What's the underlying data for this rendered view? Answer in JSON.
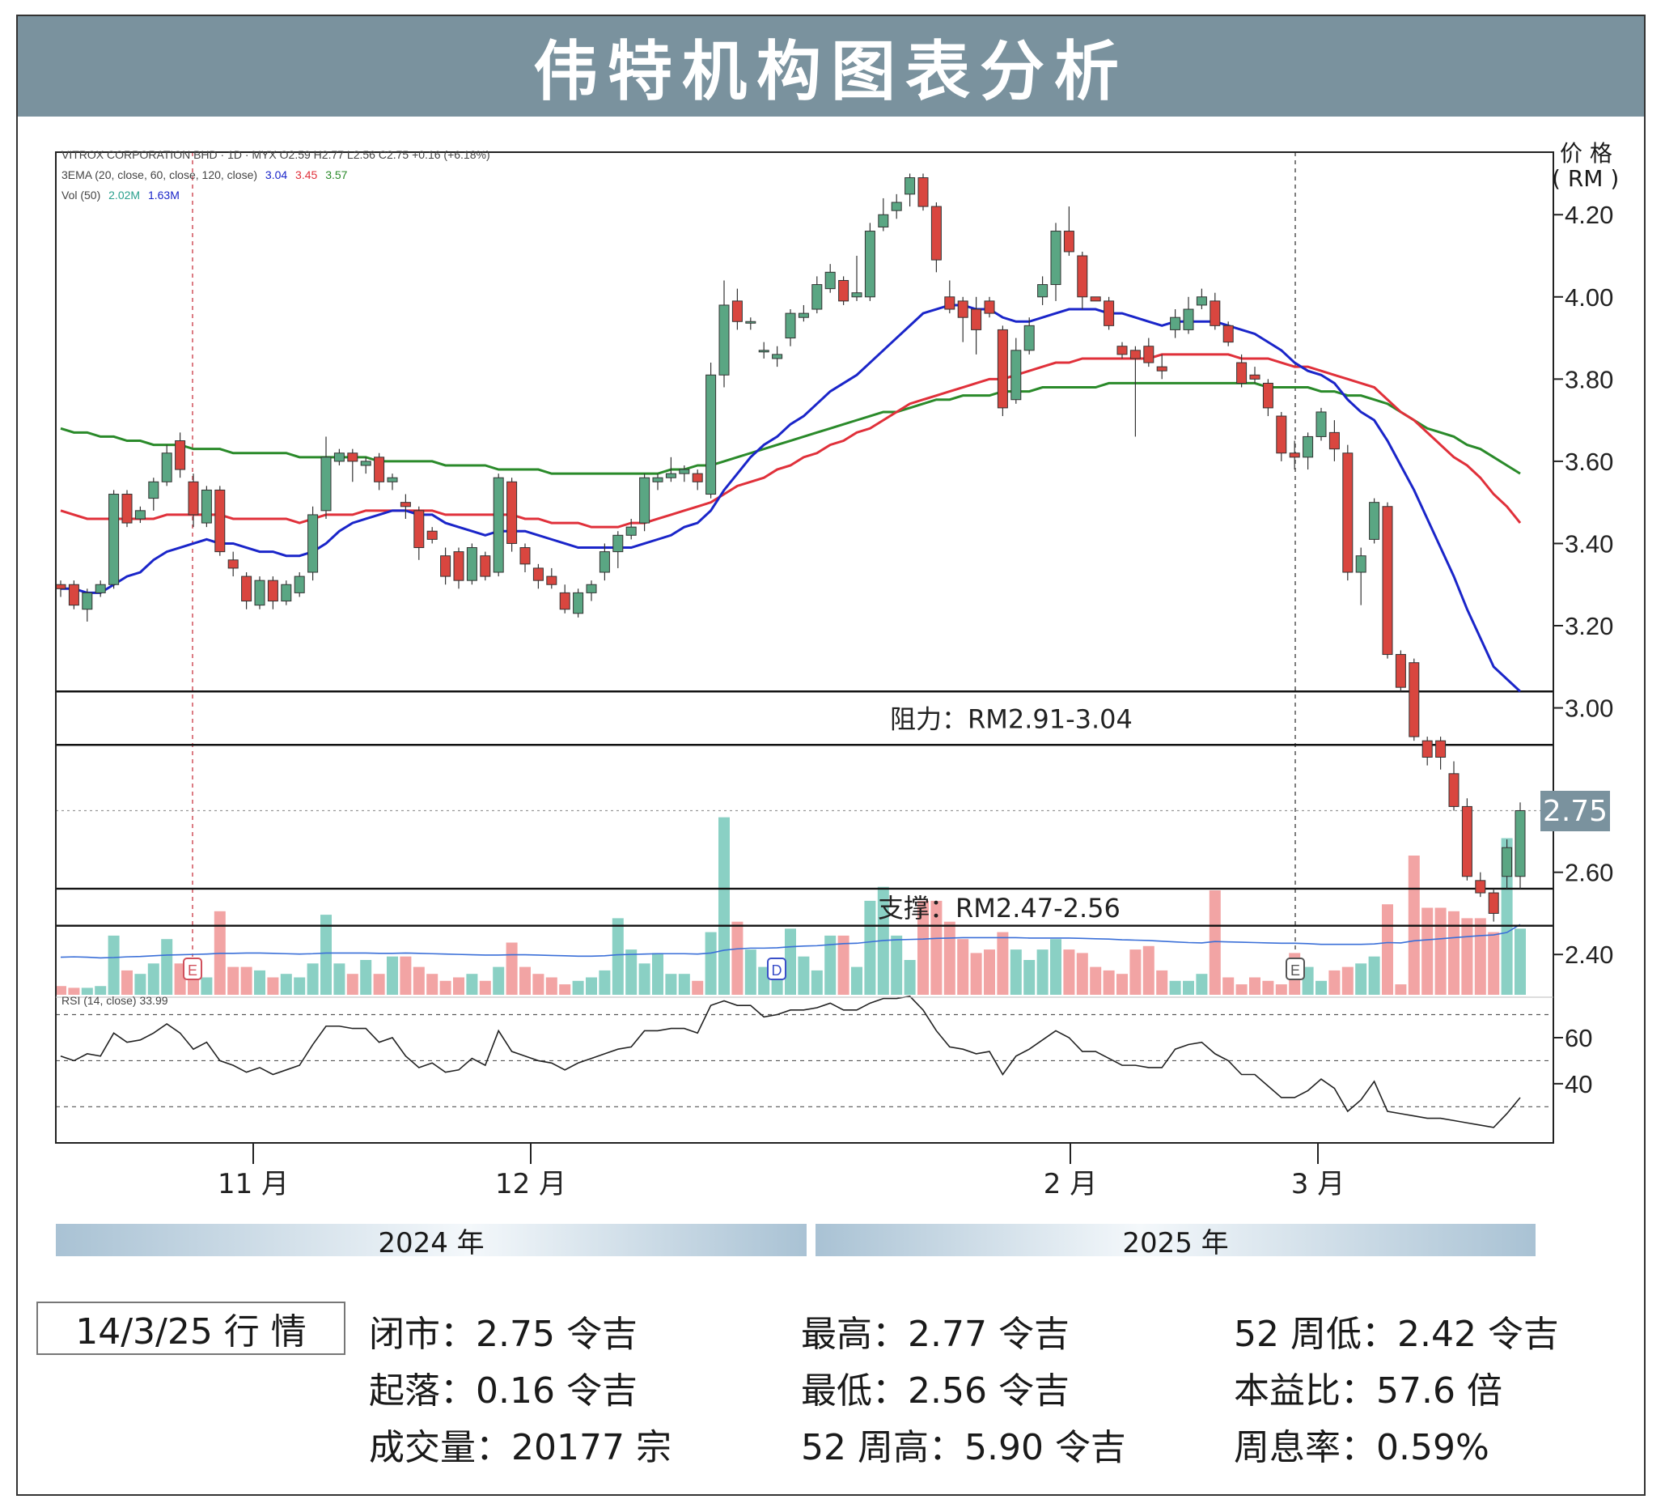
{
  "title": "伟特机构图表分析",
  "chart_header": {
    "line1": "VITROX CORPORATION BHD · 1D · MYX  O2.59  H2.77  L2.56  C2.75  +0.16 (+6.18%)",
    "line2_label": "3EMA (20, close, 60, close, 120, close)",
    "ema20": "3.04",
    "ema60": "3.45",
    "ema120": "3.57",
    "vol_label": "Vol (50)",
    "vol1": "2.02M",
    "vol2": "1.63M",
    "rsi_label": "RSI (14, close)  33.99"
  },
  "axis": {
    "price_unit_line1": "价 格",
    "price_unit_line2": "( RM )",
    "price_ticks": [
      "4.20",
      "4.00",
      "3.80",
      "3.60",
      "3.40",
      "3.20",
      "3.00",
      "2.60",
      "2.40"
    ],
    "rsi_ticks": [
      "60",
      "40"
    ],
    "month_ticks": [
      "11 月",
      "12 月",
      "2 月",
      "3 月"
    ],
    "years": [
      "2024 年",
      "2025 年"
    ],
    "last_price": "2.75"
  },
  "annotations": {
    "resistance": "阻力：RM2.91-3.04",
    "support": "支撑：RM2.47-2.56",
    "event_markers": [
      "E",
      "D",
      "E"
    ]
  },
  "colors": {
    "up": "#5aa683",
    "down": "#d9463f",
    "vol_up": "#8ad0c4",
    "vol_down": "#f2a4a4",
    "ema20": "#1a25c9",
    "ema60": "#e0303a",
    "ema120": "#2a8a2a",
    "banner": "#7a929e"
  },
  "chart_data": {
    "type": "candlestick",
    "price_range": [
      2.3,
      4.36
    ],
    "rsi_range": [
      15,
      73
    ],
    "rsi_levels": [
      70,
      50,
      30
    ],
    "resistance_zone": [
      2.91,
      3.04
    ],
    "support_zone": [
      2.47,
      2.56
    ],
    "candles": [
      [
        3.3,
        3.29,
        3.31,
        3.27
      ],
      [
        3.3,
        3.25,
        3.31,
        3.24
      ],
      [
        3.24,
        3.28,
        3.29,
        3.21
      ],
      [
        3.28,
        3.3,
        3.31,
        3.27
      ],
      [
        3.3,
        3.52,
        3.53,
        3.29
      ],
      [
        3.52,
        3.45,
        3.53,
        3.44
      ],
      [
        3.46,
        3.48,
        3.49,
        3.45
      ],
      [
        3.51,
        3.55,
        3.56,
        3.48
      ],
      [
        3.55,
        3.62,
        3.64,
        3.54
      ],
      [
        3.65,
        3.58,
        3.67,
        3.56
      ],
      [
        3.55,
        3.47,
        3.57,
        3.44
      ],
      [
        3.45,
        3.53,
        3.54,
        3.44
      ],
      [
        3.53,
        3.38,
        3.54,
        3.37
      ],
      [
        3.36,
        3.34,
        3.38,
        3.32
      ],
      [
        3.32,
        3.26,
        3.33,
        3.24
      ],
      [
        3.25,
        3.31,
        3.32,
        3.24
      ],
      [
        3.31,
        3.26,
        3.32,
        3.24
      ],
      [
        3.26,
        3.3,
        3.31,
        3.25
      ],
      [
        3.28,
        3.32,
        3.33,
        3.27
      ],
      [
        3.33,
        3.47,
        3.49,
        3.31
      ],
      [
        3.48,
        3.61,
        3.66,
        3.46
      ],
      [
        3.6,
        3.62,
        3.63,
        3.59
      ],
      [
        3.62,
        3.6,
        3.63,
        3.55
      ],
      [
        3.59,
        3.6,
        3.61,
        3.57
      ],
      [
        3.61,
        3.55,
        3.62,
        3.53
      ],
      [
        3.55,
        3.56,
        3.57,
        3.53
      ],
      [
        3.5,
        3.49,
        3.52,
        3.46
      ],
      [
        3.48,
        3.39,
        3.49,
        3.36
      ],
      [
        3.43,
        3.41,
        3.44,
        3.4
      ],
      [
        3.37,
        3.32,
        3.39,
        3.3
      ],
      [
        3.38,
        3.31,
        3.39,
        3.29
      ],
      [
        3.31,
        3.39,
        3.4,
        3.3
      ],
      [
        3.37,
        3.32,
        3.38,
        3.31
      ],
      [
        3.33,
        3.56,
        3.57,
        3.32
      ],
      [
        3.55,
        3.4,
        3.56,
        3.38
      ],
      [
        3.39,
        3.35,
        3.4,
        3.33
      ],
      [
        3.34,
        3.31,
        3.35,
        3.29
      ],
      [
        3.32,
        3.3,
        3.34,
        3.29
      ],
      [
        3.28,
        3.24,
        3.3,
        3.23
      ],
      [
        3.23,
        3.28,
        3.29,
        3.22
      ],
      [
        3.28,
        3.3,
        3.31,
        3.26
      ],
      [
        3.33,
        3.38,
        3.4,
        3.31
      ],
      [
        3.38,
        3.42,
        3.43,
        3.34
      ],
      [
        3.42,
        3.44,
        3.46,
        3.41
      ],
      [
        3.45,
        3.56,
        3.57,
        3.43
      ],
      [
        3.55,
        3.56,
        3.57,
        3.53
      ],
      [
        3.56,
        3.57,
        3.61,
        3.55
      ],
      [
        3.57,
        3.58,
        3.59,
        3.55
      ],
      [
        3.57,
        3.55,
        3.58,
        3.53
      ],
      [
        3.52,
        3.81,
        3.84,
        3.51
      ],
      [
        3.81,
        3.98,
        4.04,
        3.78
      ],
      [
        3.99,
        3.94,
        4.02,
        3.92
      ],
      [
        3.94,
        3.94,
        3.95,
        3.92
      ],
      [
        3.87,
        3.87,
        3.89,
        3.85
      ],
      [
        3.85,
        3.86,
        3.88,
        3.83
      ],
      [
        3.9,
        3.96,
        3.97,
        3.88
      ],
      [
        3.95,
        3.96,
        3.98,
        3.94
      ],
      [
        3.97,
        4.03,
        4.05,
        3.96
      ],
      [
        4.02,
        4.06,
        4.08,
        4.01
      ],
      [
        4.04,
        3.99,
        4.05,
        3.98
      ],
      [
        4.0,
        4.01,
        4.1,
        3.99
      ],
      [
        4.0,
        4.16,
        4.18,
        3.99
      ],
      [
        4.17,
        4.2,
        4.24,
        4.16
      ],
      [
        4.21,
        4.23,
        4.25,
        4.19
      ],
      [
        4.25,
        4.29,
        4.3,
        4.22
      ],
      [
        4.29,
        4.22,
        4.3,
        4.21
      ],
      [
        4.22,
        4.09,
        4.23,
        4.06
      ],
      [
        4.0,
        3.97,
        4.04,
        3.96
      ],
      [
        3.99,
        3.95,
        4.0,
        3.89
      ],
      [
        3.97,
        3.92,
        4.0,
        3.86
      ],
      [
        3.99,
        3.96,
        4.0,
        3.95
      ],
      [
        3.92,
        3.73,
        3.93,
        3.71
      ],
      [
        3.75,
        3.87,
        3.9,
        3.74
      ],
      [
        3.87,
        3.93,
        3.95,
        3.86
      ],
      [
        4.0,
        4.03,
        4.05,
        3.98
      ],
      [
        4.03,
        4.16,
        4.18,
        3.99
      ],
      [
        4.16,
        4.11,
        4.22,
        4.1
      ],
      [
        4.1,
        4.0,
        4.11,
        3.97
      ],
      [
        4.0,
        3.99,
        4.0,
        3.99
      ],
      [
        3.99,
        3.93,
        4.0,
        3.92
      ],
      [
        3.88,
        3.86,
        3.89,
        3.85
      ],
      [
        3.87,
        3.85,
        3.88,
        3.66
      ],
      [
        3.88,
        3.84,
        3.9,
        3.83
      ],
      [
        3.83,
        3.82,
        3.86,
        3.8
      ],
      [
        3.92,
        3.95,
        3.97,
        3.9
      ],
      [
        3.92,
        3.97,
        4.0,
        3.91
      ],
      [
        3.98,
        4.0,
        4.02,
        3.97
      ],
      [
        3.99,
        3.93,
        4.01,
        3.92
      ],
      [
        3.93,
        3.89,
        3.94,
        3.88
      ],
      [
        3.84,
        3.79,
        3.86,
        3.78
      ],
      [
        3.81,
        3.8,
        3.83,
        3.79
      ],
      [
        3.79,
        3.73,
        3.8,
        3.71
      ],
      [
        3.71,
        3.62,
        3.72,
        3.6
      ],
      [
        3.62,
        3.61,
        3.65,
        3.58
      ],
      [
        3.61,
        3.66,
        3.67,
        3.58
      ],
      [
        3.66,
        3.72,
        3.73,
        3.65
      ],
      [
        3.67,
        3.63,
        3.7,
        3.6
      ],
      [
        3.62,
        3.33,
        3.64,
        3.31
      ],
      [
        3.33,
        3.37,
        3.39,
        3.25
      ],
      [
        3.41,
        3.5,
        3.51,
        3.4
      ],
      [
        3.49,
        3.13,
        3.5,
        3.12
      ],
      [
        3.13,
        3.05,
        3.14,
        3.04
      ],
      [
        3.11,
        2.93,
        3.12,
        2.92
      ],
      [
        2.92,
        2.88,
        2.93,
        2.86
      ],
      [
        2.92,
        2.88,
        2.93,
        2.85
      ],
      [
        2.84,
        2.76,
        2.87,
        2.75
      ],
      [
        2.76,
        2.59,
        2.78,
        2.58
      ],
      [
        2.58,
        2.55,
        2.6,
        2.54
      ],
      [
        2.55,
        2.5,
        2.56,
        2.48
      ],
      [
        2.59,
        2.66,
        2.68,
        2.56
      ],
      [
        2.59,
        2.75,
        2.77,
        2.56
      ]
    ],
    "ema20": [
      3.29,
      3.29,
      3.28,
      3.28,
      3.3,
      3.32,
      3.33,
      3.36,
      3.38,
      3.39,
      3.4,
      3.41,
      3.4,
      3.4,
      3.39,
      3.38,
      3.38,
      3.37,
      3.37,
      3.38,
      3.4,
      3.43,
      3.45,
      3.46,
      3.47,
      3.48,
      3.48,
      3.47,
      3.47,
      3.45,
      3.44,
      3.43,
      3.42,
      3.43,
      3.43,
      3.43,
      3.42,
      3.41,
      3.4,
      3.39,
      3.39,
      3.39,
      3.39,
      3.39,
      3.4,
      3.41,
      3.42,
      3.44,
      3.45,
      3.48,
      3.53,
      3.57,
      3.61,
      3.64,
      3.66,
      3.69,
      3.71,
      3.74,
      3.77,
      3.79,
      3.81,
      3.84,
      3.87,
      3.9,
      3.93,
      3.96,
      3.97,
      3.98,
      3.98,
      3.97,
      3.97,
      3.95,
      3.94,
      3.94,
      3.95,
      3.96,
      3.97,
      3.97,
      3.97,
      3.96,
      3.96,
      3.95,
      3.94,
      3.93,
      3.94,
      3.94,
      3.94,
      3.94,
      3.93,
      3.92,
      3.91,
      3.89,
      3.87,
      3.84,
      3.82,
      3.81,
      3.79,
      3.75,
      3.72,
      3.7,
      3.65,
      3.59,
      3.53,
      3.46,
      3.39,
      3.32,
      3.24,
      3.17,
      3.1,
      3.07,
      3.04
    ],
    "ema60": [
      3.48,
      3.47,
      3.46,
      3.46,
      3.46,
      3.46,
      3.46,
      3.46,
      3.47,
      3.47,
      3.47,
      3.47,
      3.47,
      3.46,
      3.46,
      3.46,
      3.46,
      3.46,
      3.45,
      3.46,
      3.47,
      3.47,
      3.47,
      3.48,
      3.48,
      3.48,
      3.48,
      3.48,
      3.48,
      3.47,
      3.47,
      3.47,
      3.47,
      3.47,
      3.47,
      3.46,
      3.46,
      3.45,
      3.45,
      3.45,
      3.44,
      3.44,
      3.44,
      3.45,
      3.45,
      3.46,
      3.47,
      3.48,
      3.49,
      3.5,
      3.52,
      3.54,
      3.55,
      3.56,
      3.58,
      3.59,
      3.61,
      3.62,
      3.64,
      3.65,
      3.67,
      3.68,
      3.7,
      3.72,
      3.74,
      3.75,
      3.76,
      3.77,
      3.78,
      3.79,
      3.8,
      3.8,
      3.81,
      3.82,
      3.83,
      3.84,
      3.84,
      3.85,
      3.85,
      3.85,
      3.85,
      3.85,
      3.85,
      3.86,
      3.86,
      3.86,
      3.86,
      3.86,
      3.86,
      3.85,
      3.85,
      3.85,
      3.84,
      3.83,
      3.83,
      3.82,
      3.81,
      3.8,
      3.79,
      3.78,
      3.75,
      3.72,
      3.7,
      3.67,
      3.64,
      3.61,
      3.59,
      3.56,
      3.52,
      3.49,
      3.45
    ],
    "ema120": [
      3.68,
      3.67,
      3.67,
      3.66,
      3.66,
      3.65,
      3.65,
      3.64,
      3.64,
      3.64,
      3.63,
      3.63,
      3.63,
      3.62,
      3.62,
      3.62,
      3.62,
      3.62,
      3.61,
      3.61,
      3.61,
      3.61,
      3.61,
      3.61,
      3.6,
      3.6,
      3.6,
      3.6,
      3.6,
      3.59,
      3.59,
      3.59,
      3.59,
      3.58,
      3.58,
      3.58,
      3.58,
      3.57,
      3.57,
      3.57,
      3.57,
      3.57,
      3.57,
      3.57,
      3.57,
      3.57,
      3.58,
      3.58,
      3.59,
      3.59,
      3.6,
      3.61,
      3.62,
      3.63,
      3.64,
      3.65,
      3.66,
      3.67,
      3.68,
      3.69,
      3.7,
      3.71,
      3.72,
      3.72,
      3.73,
      3.74,
      3.75,
      3.75,
      3.76,
      3.76,
      3.76,
      3.77,
      3.77,
      3.77,
      3.78,
      3.78,
      3.78,
      3.78,
      3.78,
      3.79,
      3.79,
      3.79,
      3.79,
      3.79,
      3.79,
      3.79,
      3.79,
      3.79,
      3.79,
      3.79,
      3.79,
      3.78,
      3.78,
      3.78,
      3.78,
      3.77,
      3.77,
      3.76,
      3.76,
      3.75,
      3.74,
      3.72,
      3.7,
      3.68,
      3.67,
      3.66,
      3.64,
      3.63,
      3.61,
      3.59,
      3.57
    ],
    "volume": [
      0.25,
      0.2,
      0.2,
      0.25,
      1.7,
      0.7,
      0.6,
      0.9,
      1.6,
      0.9,
      0.8,
      0.5,
      2.4,
      0.8,
      0.8,
      0.7,
      0.5,
      0.6,
      0.5,
      0.9,
      2.3,
      0.9,
      0.6,
      1.0,
      0.6,
      1.1,
      1.1,
      0.8,
      0.6,
      0.4,
      0.5,
      0.6,
      0.4,
      0.8,
      1.5,
      0.8,
      0.6,
      0.5,
      0.3,
      0.4,
      0.5,
      0.7,
      2.2,
      1.3,
      0.9,
      1.2,
      0.6,
      0.6,
      0.4,
      1.8,
      5.1,
      2.1,
      1.3,
      0.8,
      1.0,
      1.9,
      1.1,
      0.7,
      1.7,
      1.7,
      0.8,
      2.7,
      3.1,
      1.7,
      1.0,
      2.7,
      2.7,
      2.1,
      1.6,
      1.2,
      1.3,
      1.8,
      1.3,
      1.0,
      1.3,
      1.6,
      1.3,
      1.2,
      0.8,
      0.7,
      0.6,
      1.3,
      1.4,
      0.7,
      0.4,
      0.4,
      0.6,
      3.0,
      0.5,
      0.3,
      0.5,
      0.4,
      0.3,
      1.2,
      0.8,
      0.4,
      0.7,
      0.8,
      0.9,
      1.1,
      2.6,
      0.3,
      4.0,
      2.5,
      2.5,
      2.4,
      2.2,
      2.2,
      1.8,
      4.5,
      1.9
    ],
    "volume_ma": [
      1.08,
      1.09,
      1.08,
      1.06,
      1.07,
      1.09,
      1.1,
      1.12,
      1.14,
      1.15,
      1.16,
      1.17,
      1.19,
      1.19,
      1.2,
      1.2,
      1.19,
      1.18,
      1.17,
      1.18,
      1.2,
      1.2,
      1.2,
      1.2,
      1.19,
      1.19,
      1.2,
      1.19,
      1.18,
      1.17,
      1.16,
      1.15,
      1.14,
      1.14,
      1.15,
      1.15,
      1.14,
      1.13,
      1.12,
      1.11,
      1.11,
      1.12,
      1.15,
      1.16,
      1.17,
      1.18,
      1.18,
      1.18,
      1.17,
      1.2,
      1.28,
      1.32,
      1.34,
      1.34,
      1.35,
      1.38,
      1.4,
      1.41,
      1.44,
      1.47,
      1.48,
      1.52,
      1.56,
      1.58,
      1.59,
      1.6,
      1.62,
      1.63,
      1.64,
      1.64,
      1.64,
      1.64,
      1.64,
      1.63,
      1.63,
      1.63,
      1.63,
      1.62,
      1.61,
      1.6,
      1.58,
      1.57,
      1.56,
      1.54,
      1.52,
      1.5,
      1.49,
      1.53,
      1.52,
      1.51,
      1.5,
      1.49,
      1.48,
      1.48,
      1.47,
      1.45,
      1.45,
      1.45,
      1.45,
      1.46,
      1.5,
      1.49,
      1.55,
      1.58,
      1.61,
      1.64,
      1.67,
      1.7,
      1.72,
      1.79,
      2.02
    ],
    "rsi": [
      52,
      50,
      53,
      52,
      62,
      58,
      59,
      62,
      66,
      62,
      55,
      58,
      50,
      48,
      45,
      47,
      44,
      46,
      48,
      57,
      65,
      65,
      64,
      64,
      58,
      60,
      52,
      47,
      49,
      45,
      46,
      51,
      48,
      63,
      54,
      52,
      50,
      49,
      46,
      49,
      51,
      53,
      55,
      56,
      63,
      63,
      64,
      64,
      62,
      74,
      76,
      74,
      74,
      69,
      70,
      72,
      72,
      73,
      75,
      72,
      72,
      75,
      77,
      77,
      78,
      72,
      63,
      56,
      55,
      53,
      54,
      44,
      52,
      55,
      59,
      63,
      60,
      54,
      54,
      51,
      48,
      48,
      47,
      47,
      55,
      57,
      58,
      53,
      50,
      44,
      44,
      39,
      34,
      34,
      37,
      42,
      38,
      28,
      33,
      41,
      28,
      27,
      26,
      25,
      25,
      24,
      23,
      22,
      21,
      27,
      34
    ]
  }
}
